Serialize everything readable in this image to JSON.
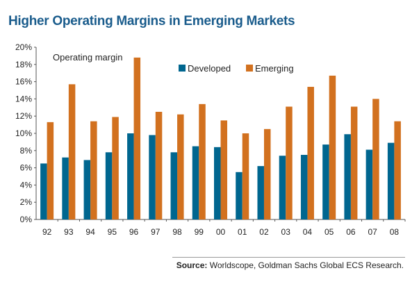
{
  "title": "Higher Operating Margins in Emerging Markets",
  "source_label": "Source:",
  "source_text": "Worldscope, Goldman Sachs Global ECS Research.",
  "chart_data": {
    "type": "bar",
    "title": "Higher Operating Margins in Emerging Markets",
    "annotation": "Operating margin",
    "categories": [
      "92",
      "93",
      "94",
      "95",
      "96",
      "97",
      "98",
      "99",
      "00",
      "01",
      "02",
      "03",
      "04",
      "05",
      "06",
      "07",
      "08"
    ],
    "series": [
      {
        "name": "Developed",
        "color": "#00668f",
        "values": [
          6.5,
          7.2,
          6.9,
          7.8,
          10.0,
          9.8,
          7.8,
          8.5,
          8.4,
          5.5,
          6.2,
          7.4,
          7.5,
          8.7,
          9.9,
          8.1,
          8.9
        ]
      },
      {
        "name": "Emerging",
        "color": "#d2711f",
        "values": [
          11.3,
          15.7,
          11.4,
          11.9,
          18.8,
          12.5,
          12.2,
          13.4,
          11.5,
          10.0,
          10.5,
          13.1,
          15.4,
          16.7,
          13.1,
          14.0,
          11.4
        ]
      }
    ],
    "yticks": [
      "0%",
      "2%",
      "4%",
      "6%",
      "8%",
      "10%",
      "12%",
      "14%",
      "16%",
      "18%",
      "20%"
    ],
    "ylim": [
      0,
      20
    ],
    "legend": "top-right",
    "grid": false
  }
}
